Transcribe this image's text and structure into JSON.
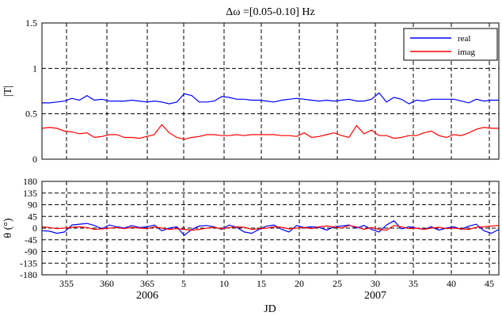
{
  "chart_data": [
    {
      "type": "line",
      "title": "Δω =[0.05-0.10] Hz",
      "xlabel": "",
      "ylabel": "|T|",
      "x_ticks": [
        "355",
        "360",
        "365",
        "5",
        "10",
        "15",
        "20",
        "25",
        "30",
        "35",
        "40",
        "45"
      ],
      "xlim": [
        351.5,
        46.5
      ],
      "ylim": [
        0,
        1.5
      ],
      "y_ticks": [
        "0",
        "0.5",
        "1",
        "1.5"
      ],
      "grid": true,
      "legend_position": "top-right",
      "series": [
        {
          "name": "real",
          "color": "#0000ff",
          "values": [
            0.62,
            0.62,
            0.63,
            0.64,
            0.67,
            0.65,
            0.7,
            0.65,
            0.66,
            0.64,
            0.64,
            0.64,
            0.65,
            0.64,
            0.63,
            0.64,
            0.63,
            0.61,
            0.63,
            0.72,
            0.7,
            0.63,
            0.63,
            0.64,
            0.69,
            0.68,
            0.66,
            0.66,
            0.65,
            0.65,
            0.64,
            0.63,
            0.65,
            0.66,
            0.67,
            0.66,
            0.65,
            0.64,
            0.65,
            0.64,
            0.65,
            0.66,
            0.64,
            0.64,
            0.66,
            0.73,
            0.63,
            0.68,
            0.66,
            0.61,
            0.65,
            0.64,
            0.66,
            0.66,
            0.66,
            0.66,
            0.64,
            0.62,
            0.66,
            0.64,
            0.65,
            0.65
          ]
        },
        {
          "name": "imag",
          "color": "#ff0000",
          "values": [
            0.34,
            0.35,
            0.34,
            0.31,
            0.3,
            0.28,
            0.29,
            0.24,
            0.25,
            0.27,
            0.27,
            0.24,
            0.24,
            0.23,
            0.25,
            0.27,
            0.38,
            0.29,
            0.24,
            0.22,
            0.24,
            0.25,
            0.27,
            0.27,
            0.26,
            0.26,
            0.27,
            0.26,
            0.27,
            0.27,
            0.27,
            0.27,
            0.26,
            0.26,
            0.25,
            0.29,
            0.24,
            0.25,
            0.27,
            0.29,
            0.26,
            0.24,
            0.37,
            0.28,
            0.32,
            0.26,
            0.26,
            0.23,
            0.24,
            0.26,
            0.26,
            0.29,
            0.31,
            0.26,
            0.24,
            0.27,
            0.26,
            0.29,
            0.33,
            0.35,
            0.34,
            0.34
          ]
        }
      ]
    },
    {
      "type": "line",
      "title": "",
      "xlabel": "JD",
      "ylabel": "θ (°)",
      "x_ticks": [
        "355",
        "360",
        "365",
        "5",
        "10",
        "15",
        "20",
        "25",
        "30",
        "35",
        "40",
        "45"
      ],
      "year_labels": [
        "2006",
        "2007"
      ],
      "xlim": [
        351.5,
        46.5
      ],
      "ylim": [
        -180,
        180
      ],
      "y_ticks": [
        "180",
        "135",
        "90",
        "45",
        "0",
        "-45",
        "-90",
        "-135",
        "-180"
      ],
      "grid": true,
      "series": [
        {
          "name": "real",
          "color": "#0000ff",
          "values": [
            -10,
            -12,
            -20,
            -15,
            12,
            15,
            18,
            10,
            -3,
            12,
            5,
            0,
            10,
            2,
            5,
            12,
            -10,
            0,
            5,
            -28,
            -5,
            8,
            10,
            5,
            -5,
            12,
            3,
            -15,
            -20,
            -5,
            8,
            12,
            -5,
            -15,
            10,
            2,
            5,
            3,
            -8,
            5,
            8,
            12,
            0,
            10,
            -5,
            -15,
            12,
            28,
            -3,
            5,
            0,
            -5,
            5,
            -8,
            0,
            5,
            -5,
            8,
            15,
            -10,
            -20,
            -5
          ]
        },
        {
          "name": "imag",
          "color": "#ff0000",
          "values": [
            5,
            2,
            -2,
            0,
            3,
            5,
            2,
            -5,
            -3,
            0,
            2,
            -2,
            3,
            0,
            -2,
            5,
            0,
            -5,
            -2,
            -5,
            -8,
            -5,
            0,
            3,
            -3,
            2,
            5,
            3,
            -5,
            -2,
            0,
            5,
            3,
            -3,
            0,
            2,
            -2,
            5,
            8,
            5,
            0,
            10,
            5,
            -5,
            2,
            -5,
            -8,
            10,
            5,
            -2,
            0,
            -5,
            0,
            3,
            -2,
            0,
            -3,
            -5,
            3,
            5,
            8,
            10
          ]
        }
      ]
    }
  ]
}
